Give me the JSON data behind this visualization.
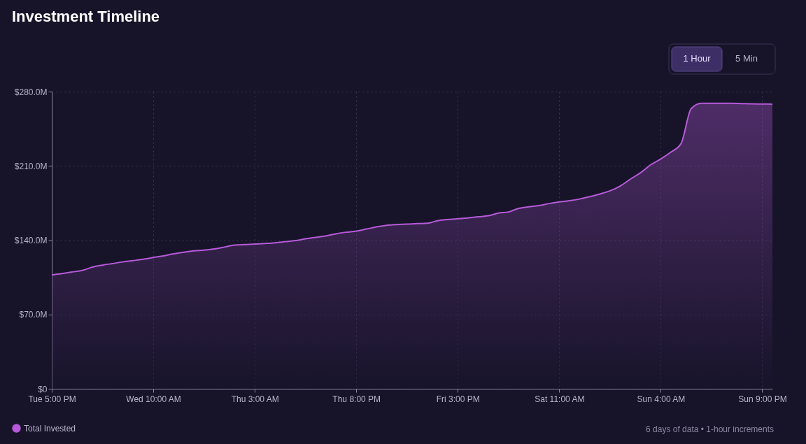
{
  "chart_data": {
    "type": "area",
    "title": "Investment Timeline",
    "categories": [
      "Tue 5:00 PM",
      null,
      null,
      null,
      null,
      null,
      null,
      null,
      null,
      null,
      "Wed 10:00 AM",
      null,
      null,
      null,
      null,
      null,
      null,
      null,
      null,
      null,
      "Thu 3:00 AM",
      null,
      null,
      null,
      null,
      null,
      null,
      null,
      null,
      null,
      "Thu 8:00 PM",
      null,
      null,
      null,
      null,
      null,
      null,
      null,
      null,
      null,
      "Fri 3:00 PM",
      null,
      null,
      null,
      null,
      null,
      null,
      null,
      null,
      null,
      "Sat 11:00 AM",
      null,
      null,
      null,
      null,
      null,
      null,
      null,
      null,
      null,
      "Sun 4:00 AM",
      null,
      null,
      null,
      null,
      null,
      null,
      null,
      null,
      null,
      "Sun 9:00 PM",
      null
    ],
    "series": [
      {
        "name": "Total Invested",
        "color": "#b65ad8",
        "values": [
          107.2,
          108.5,
          110,
          111.5,
          114.6,
          116.5,
          118,
          119.5,
          120.7,
          122,
          123.7,
          125.2,
          127.2,
          128.6,
          130,
          130.6,
          131.8,
          133.5,
          135.4,
          135.9,
          136.3,
          136.9,
          137.6,
          138.6,
          139.6,
          141.3,
          142.7,
          144,
          146,
          147.5,
          148.6,
          150.5,
          152.5,
          154,
          154.7,
          155.1,
          155.6,
          155.9,
          158.3,
          159.5,
          160.2,
          160.9,
          162,
          163,
          165.5,
          166.6,
          170,
          171.5,
          172.6,
          174.5,
          176,
          177.2,
          178.8,
          181,
          183.5,
          186.5,
          191,
          197.5,
          203.5,
          211,
          216.5,
          223,
          231,
          264,
          269,
          269,
          269,
          269,
          268.7,
          268.4,
          268.3,
          268.2
        ]
      }
    ],
    "ylim": [
      0,
      280
    ],
    "yticks": [
      {
        "value": 0,
        "label": "$0"
      },
      {
        "value": 70,
        "label": "$70.0M"
      },
      {
        "value": 140,
        "label": "$140.0M"
      },
      {
        "value": 210,
        "label": "$210.0M"
      },
      {
        "value": 280,
        "label": "$280.0M"
      }
    ],
    "grid": true,
    "legend": "bottom left",
    "marker": "none",
    "line_style": "solid",
    "annotations": [
      "1 Hour",
      "5 Min",
      "6 days of data • 1-hour increments"
    ]
  }
}
